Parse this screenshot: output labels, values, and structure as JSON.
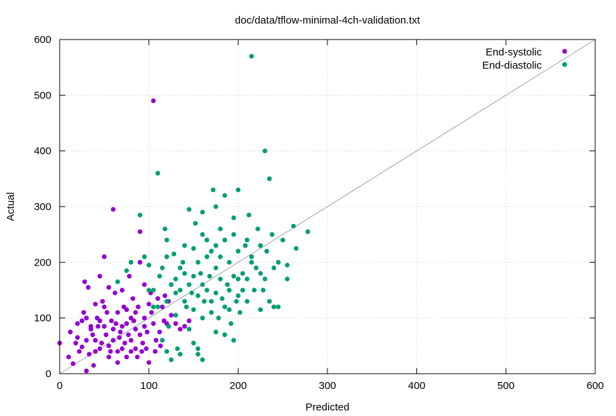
{
  "chart_data": {
    "type": "scatter",
    "title": "doc/data/tflow-minimal-4ch-validation.txt",
    "xlabel": "Predicted",
    "ylabel": "Actual",
    "xlim": [
      0,
      600
    ],
    "ylim": [
      0,
      600
    ],
    "x_ticks": [
      "0",
      "100",
      "200",
      "300",
      "400",
      "500",
      "600"
    ],
    "y_ticks": [
      "0",
      "100",
      "200",
      "300",
      "400",
      "500",
      "600"
    ],
    "grid": true,
    "legend_position": "top-right",
    "reference_line": {
      "from": [
        0,
        0
      ],
      "to": [
        600,
        600
      ],
      "color": "#a0a0a0"
    },
    "series": [
      {
        "name": "End-systolic",
        "color": "#9400d3",
        "points": [
          [
            0,
            55
          ],
          [
            12,
            75
          ],
          [
            15,
            18
          ],
          [
            20,
            65
          ],
          [
            25,
            95
          ],
          [
            25,
            48
          ],
          [
            28,
            165
          ],
          [
            30,
            100
          ],
          [
            30,
            5
          ],
          [
            32,
            155
          ],
          [
            35,
            80
          ],
          [
            38,
            15
          ],
          [
            40,
            125
          ],
          [
            40,
            60
          ],
          [
            42,
            100
          ],
          [
            45,
            45
          ],
          [
            45,
            175
          ],
          [
            48,
            130
          ],
          [
            50,
            210
          ],
          [
            50,
            85
          ],
          [
            52,
            70
          ],
          [
            55,
            155
          ],
          [
            55,
            30
          ],
          [
            58,
            95
          ],
          [
            60,
            295
          ],
          [
            60,
            60
          ],
          [
            62,
            145
          ],
          [
            65,
            110
          ],
          [
            65,
            20
          ],
          [
            68,
            75
          ],
          [
            70,
            150
          ],
          [
            70,
            45
          ],
          [
            72,
            120
          ],
          [
            75,
            90
          ],
          [
            75,
            30
          ],
          [
            78,
            175
          ],
          [
            80,
            60
          ],
          [
            80,
            100
          ],
          [
            82,
            135
          ],
          [
            85,
            45
          ],
          [
            85,
            80
          ],
          [
            88,
            120
          ],
          [
            90,
            200
          ],
          [
            90,
            255
          ],
          [
            90,
            70
          ],
          [
            92,
            40
          ],
          [
            95,
            160
          ],
          [
            95,
            100
          ],
          [
            98,
            75
          ],
          [
            100,
            125
          ],
          [
            100,
            20
          ],
          [
            105,
            490
          ],
          [
            105,
            90
          ],
          [
            108,
            60
          ],
          [
            110,
            135
          ],
          [
            112,
            75
          ],
          [
            115,
            120
          ],
          [
            120,
            90
          ],
          [
            125,
            105
          ],
          [
            130,
            90
          ],
          [
            135,
            80
          ],
          [
            140,
            85
          ],
          [
            145,
            95
          ],
          [
            18,
            55
          ],
          [
            22,
            40
          ],
          [
            27,
            110
          ],
          [
            33,
            35
          ],
          [
            37,
            70
          ],
          [
            43,
            85
          ],
          [
            47,
            55
          ],
          [
            53,
            110
          ],
          [
            57,
            40
          ],
          [
            63,
            90
          ],
          [
            67,
            65
          ],
          [
            73,
            55
          ],
          [
            77,
            70
          ],
          [
            83,
            95
          ],
          [
            87,
            30
          ],
          [
            93,
            55
          ],
          [
            97,
            45
          ],
          [
            103,
            110
          ],
          [
            107,
            40
          ],
          [
            113,
            50
          ],
          [
            117,
            95
          ],
          [
            35,
            85
          ],
          [
            45,
            95
          ],
          [
            55,
            50
          ],
          [
            65,
            40
          ],
          [
            75,
            115
          ],
          [
            85,
            110
          ],
          [
            95,
            85
          ],
          [
            60,
            80
          ],
          [
            70,
            85
          ],
          [
            80,
            40
          ],
          [
            50,
            120
          ],
          [
            40,
            40
          ],
          [
            30,
            60
          ],
          [
            20,
            90
          ],
          [
            10,
            30
          ],
          [
            118,
            140
          ],
          [
            122,
            130
          ],
          [
            102,
            145
          ]
        ]
      },
      {
        "name": "End-diastolic",
        "color": "#009e73",
        "points": [
          [
            65,
            165
          ],
          [
            75,
            185
          ],
          [
            80,
            200
          ],
          [
            90,
            285
          ],
          [
            95,
            210
          ],
          [
            100,
            195
          ],
          [
            100,
            150
          ],
          [
            105,
            150
          ],
          [
            110,
            120
          ],
          [
            112,
            175
          ],
          [
            115,
            190
          ],
          [
            118,
            260
          ],
          [
            120,
            240
          ],
          [
            120,
            130
          ],
          [
            122,
            85
          ],
          [
            125,
            160
          ],
          [
            128,
            215
          ],
          [
            130,
            170
          ],
          [
            132,
            45
          ],
          [
            135,
            150
          ],
          [
            138,
            200
          ],
          [
            140,
            180
          ],
          [
            140,
            130
          ],
          [
            142,
            120
          ],
          [
            145,
            295
          ],
          [
            145,
            160
          ],
          [
            148,
            145
          ],
          [
            150,
            225
          ],
          [
            150,
            115
          ],
          [
            150,
            55
          ],
          [
            152,
            270
          ],
          [
            155,
            200
          ],
          [
            155,
            140
          ],
          [
            155,
            35
          ],
          [
            158,
            180
          ],
          [
            160,
            290
          ],
          [
            160,
            160
          ],
          [
            160,
            100
          ],
          [
            162,
            130
          ],
          [
            165,
            210
          ],
          [
            165,
            150
          ],
          [
            168,
            175
          ],
          [
            170,
            220
          ],
          [
            170,
            130
          ],
          [
            172,
            330
          ],
          [
            175,
            300
          ],
          [
            175,
            190
          ],
          [
            175,
            145
          ],
          [
            178,
            100
          ],
          [
            180,
            260
          ],
          [
            180,
            170
          ],
          [
            182,
            135
          ],
          [
            185,
            320
          ],
          [
            185,
            240
          ],
          [
            185,
            120
          ],
          [
            188,
            160
          ],
          [
            190,
            200
          ],
          [
            190,
            150
          ],
          [
            192,
            90
          ],
          [
            195,
            280
          ],
          [
            195,
            175
          ],
          [
            198,
            130
          ],
          [
            200,
            330
          ],
          [
            200,
            220
          ],
          [
            200,
            140
          ],
          [
            202,
            110
          ],
          [
            205,
            180
          ],
          [
            205,
            150
          ],
          [
            208,
            230
          ],
          [
            210,
            170
          ],
          [
            212,
            285
          ],
          [
            215,
            570
          ],
          [
            215,
            210
          ],
          [
            218,
            150
          ],
          [
            220,
            190
          ],
          [
            222,
            260
          ],
          [
            225,
            180
          ],
          [
            228,
            150
          ],
          [
            230,
            400
          ],
          [
            232,
            220
          ],
          [
            235,
            350
          ],
          [
            235,
            130
          ],
          [
            238,
            250
          ],
          [
            240,
            190
          ],
          [
            245,
            120
          ],
          [
            250,
            240
          ],
          [
            255,
            195
          ],
          [
            262,
            265
          ],
          [
            265,
            225
          ],
          [
            278,
            255
          ],
          [
            110,
            360
          ],
          [
            115,
            60
          ],
          [
            120,
            40
          ],
          [
            125,
            25
          ],
          [
            135,
            35
          ],
          [
            155,
            45
          ],
          [
            160,
            25
          ],
          [
            175,
            75
          ],
          [
            185,
            70
          ],
          [
            195,
            60
          ],
          [
            105,
            120
          ],
          [
            130,
            105
          ],
          [
            145,
            80
          ],
          [
            170,
            110
          ],
          [
            190,
            115
          ],
          [
            210,
            130
          ],
          [
            225,
            115
          ],
          [
            240,
            120
          ],
          [
            255,
            170
          ],
          [
            130,
            145
          ],
          [
            150,
            175
          ],
          [
            165,
            240
          ],
          [
            180,
            210
          ],
          [
            200,
            170
          ],
          [
            215,
            200
          ],
          [
            230,
            170
          ],
          [
            245,
            200
          ],
          [
            140,
            230
          ],
          [
            160,
            250
          ],
          [
            175,
            230
          ],
          [
            195,
            250
          ],
          [
            210,
            240
          ],
          [
            225,
            230
          ],
          [
            120,
            210
          ],
          [
            135,
            190
          ]
        ]
      }
    ]
  }
}
